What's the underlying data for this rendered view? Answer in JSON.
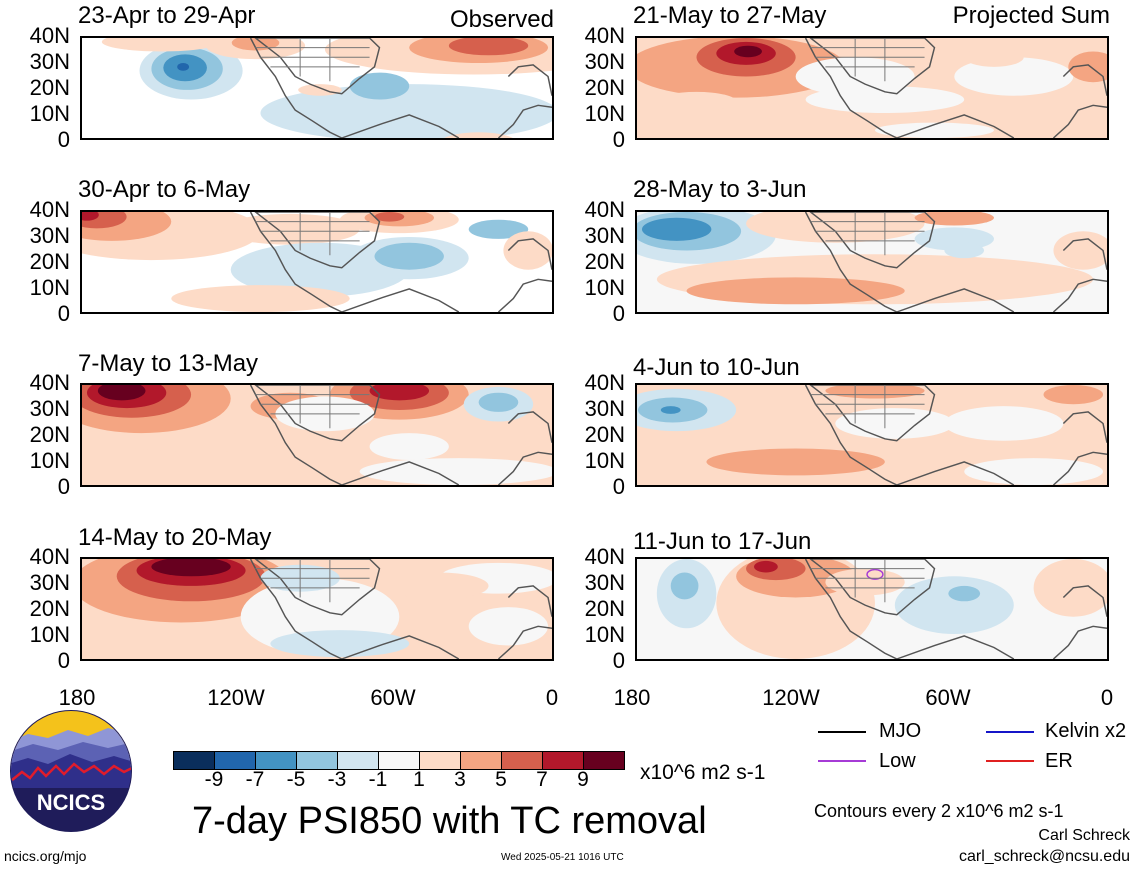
{
  "header": {
    "observed_label": "Observed",
    "projected_label": "Projected Sum"
  },
  "panels": {
    "left": [
      {
        "title": "23-Apr to 29-Apr"
      },
      {
        "title": "30-Apr to 6-May"
      },
      {
        "title": "7-May to 13-May"
      },
      {
        "title": "14-May to 20-May"
      }
    ],
    "right": [
      {
        "title": "21-May to 27-May"
      },
      {
        "title": "28-May to 3-Jun"
      },
      {
        "title": "4-Jun to 10-Jun"
      },
      {
        "title": "11-Jun to 17-Jun"
      }
    ]
  },
  "axes": {
    "lat_ticks": [
      "40N",
      "30N",
      "20N",
      "10N",
      "0"
    ],
    "lon_ticks": [
      "180",
      "120W",
      "60W",
      "0"
    ],
    "lat_range": [
      0,
      40
    ],
    "lon_range": [
      -180,
      0
    ]
  },
  "colorbar": {
    "colors": [
      "#0a2e5c",
      "#2166ac",
      "#4393c3",
      "#92c5de",
      "#d1e5f0",
      "#f7f7f7",
      "#fddbc7",
      "#f4a582",
      "#d6604d",
      "#b2182b",
      "#67001f"
    ],
    "tick_labels": [
      "-9",
      "-7",
      "-5",
      "-3",
      "-1",
      "1",
      "3",
      "5",
      "7",
      "9"
    ],
    "units": "x10^6 m2 s-1"
  },
  "title": "7-day PSI850 with TC removal",
  "legend": [
    {
      "label": "MJO",
      "color": "#000000"
    },
    {
      "label": "Kelvin x2",
      "color": "#1515c8"
    },
    {
      "label": "Low",
      "color": "#a63bd6"
    },
    {
      "label": "ER",
      "color": "#e02020"
    }
  ],
  "contour_note": "Contours every 2 x10^6 m2 s-1",
  "credit": {
    "author": "Carl Schreck",
    "email": "carl_schreck@ncsu.edu"
  },
  "site": "ncics.org/mjo",
  "timestamp": "Wed 2025-05-21 1016 UTC",
  "logo": {
    "text": "NCICS"
  }
}
